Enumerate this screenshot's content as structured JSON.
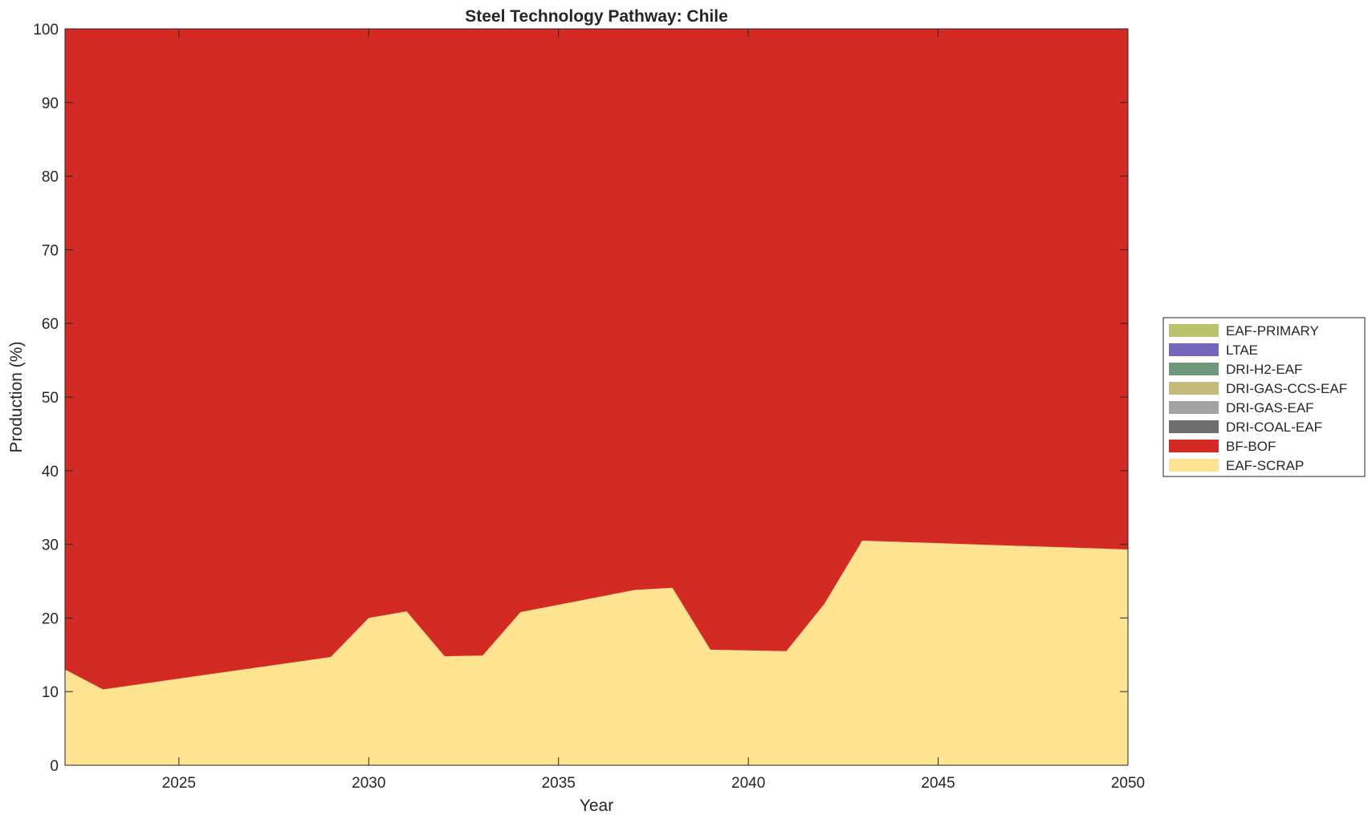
{
  "chart_data": {
    "type": "area",
    "stacked": true,
    "title": "Steel Technology Pathway: Chile",
    "xlabel": "Year",
    "ylabel": "Production (%)",
    "xlim": [
      2022,
      2050
    ],
    "ylim": [
      0,
      100
    ],
    "xticks": [
      2025,
      2030,
      2035,
      2040,
      2045,
      2050
    ],
    "yticks": [
      0,
      10,
      20,
      30,
      40,
      50,
      60,
      70,
      80,
      90,
      100
    ],
    "grid": false,
    "legend_position": "right",
    "x": [
      2022,
      2023,
      2029,
      2030,
      2031,
      2032,
      2033,
      2034,
      2037,
      2038,
      2039,
      2041,
      2042,
      2043,
      2050
    ],
    "series": [
      {
        "name": "EAF-SCRAP",
        "color": "#FEE391",
        "values": [
          13.0,
          10.3,
          14.7,
          20.0,
          20.9,
          14.8,
          14.9,
          20.8,
          23.8,
          24.1,
          15.7,
          15.5,
          21.9,
          30.5,
          29.3
        ]
      },
      {
        "name": "BF-BOF",
        "color": "#D32A24",
        "values": [
          87.0,
          89.7,
          85.3,
          80.0,
          79.1,
          85.2,
          85.1,
          79.2,
          76.2,
          75.9,
          84.3,
          84.5,
          78.1,
          69.5,
          70.7
        ]
      },
      {
        "name": "DRI-COAL-EAF",
        "color": "#6E6E6E",
        "values": [
          0,
          0,
          0,
          0,
          0,
          0,
          0,
          0,
          0,
          0,
          0,
          0,
          0,
          0,
          0
        ]
      },
      {
        "name": "DRI-GAS-EAF",
        "color": "#A3A3A3",
        "values": [
          0,
          0,
          0,
          0,
          0,
          0,
          0,
          0,
          0,
          0,
          0,
          0,
          0,
          0,
          0
        ]
      },
      {
        "name": "DRI-GAS-CCS-EAF",
        "color": "#C4BA7C",
        "values": [
          0,
          0,
          0,
          0,
          0,
          0,
          0,
          0,
          0,
          0,
          0,
          0,
          0,
          0,
          0
        ]
      },
      {
        "name": "DRI-H2-EAF",
        "color": "#6F977B",
        "values": [
          0,
          0,
          0,
          0,
          0,
          0,
          0,
          0,
          0,
          0,
          0,
          0,
          0,
          0,
          0
        ]
      },
      {
        "name": "LTAE",
        "color": "#7566BC",
        "values": [
          0,
          0,
          0,
          0,
          0,
          0,
          0,
          0,
          0,
          0,
          0,
          0,
          0,
          0,
          0
        ]
      },
      {
        "name": "EAF-PRIMARY",
        "color": "#BBC46A",
        "values": [
          0,
          0,
          0,
          0,
          0,
          0,
          0,
          0,
          0,
          0,
          0,
          0,
          0,
          0,
          0
        ]
      }
    ],
    "legend_order": [
      "EAF-PRIMARY",
      "LTAE",
      "DRI-H2-EAF",
      "DRI-GAS-CCS-EAF",
      "DRI-GAS-EAF",
      "DRI-COAL-EAF",
      "BF-BOF",
      "EAF-SCRAP"
    ]
  }
}
